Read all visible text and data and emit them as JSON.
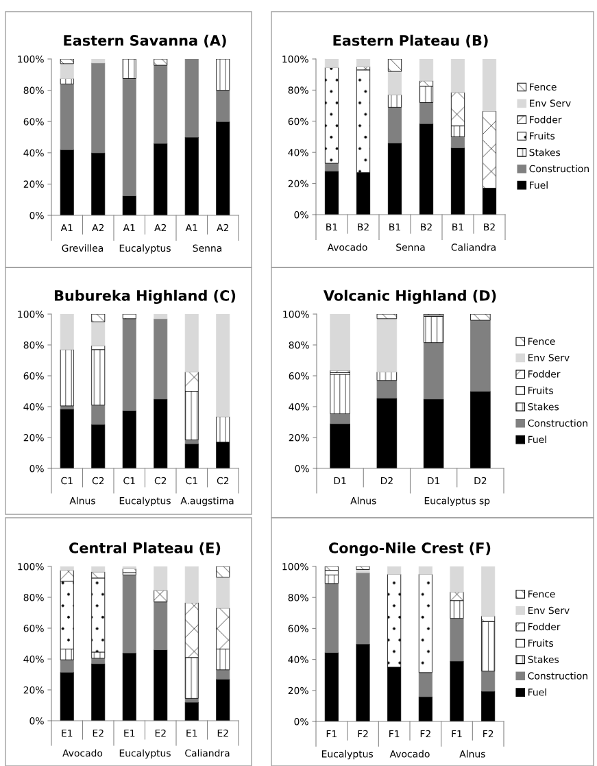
{
  "chart_data": [
    {
      "type": "bar",
      "stacked": true,
      "title": "Eastern Savanna (A)",
      "categories": [
        "A1",
        "A2",
        "A1",
        "A2",
        "A1",
        "A2"
      ],
      "annotations": [
        "Grevillea",
        "Eucalyptus",
        "Senna"
      ],
      "ylim": [
        0,
        100
      ],
      "yticks": [
        {
          "value": 0,
          "label": "0%"
        },
        {
          "value": 20,
          "label": "20%"
        },
        {
          "value": 40,
          "label": "40%"
        },
        {
          "value": 60,
          "label": "60%"
        },
        {
          "value": 80,
          "label": "80%"
        },
        {
          "value": 100,
          "label": "100%"
        }
      ],
      "legend": false,
      "grid": false,
      "series": [
        {
          "color": "#000000",
          "values": [
            42,
            40,
            12.5,
            46,
            50,
            60
          ]
        },
        {
          "color": "#808080",
          "values": [
            42,
            57.5,
            75,
            50,
            50,
            20
          ]
        },
        {
          "color": "#000000",
          "values": [
            3.5,
            0,
            12.5,
            0,
            0,
            20
          ]
        },
        {
          "color": "#d9d9d9",
          "values": [
            9.5,
            2.5,
            0,
            0,
            0,
            0
          ]
        },
        {
          "color": "#000000",
          "values": [
            3,
            0,
            0,
            4,
            0,
            0
          ]
        }
      ]
    },
    {
      "type": "bar",
      "stacked": true,
      "title": "Eastern Plateau (B)",
      "categories": [
        "B1",
        "B2",
        "B1",
        "B2",
        "B1",
        "B2"
      ],
      "annotations": [
        "Avocado",
        "Senna",
        "Caliandra"
      ],
      "ylim": [
        0,
        100
      ],
      "yticks": [
        {
          "value": 0,
          "label": "0%"
        },
        {
          "value": 20,
          "label": "20%"
        },
        {
          "value": 40,
          "label": "40%"
        },
        {
          "value": 60,
          "label": "60%"
        },
        {
          "value": 80,
          "label": "80%"
        },
        {
          "value": 100,
          "label": "100%"
        }
      ],
      "legend": "right",
      "grid": false,
      "series": [
        {
          "name": "Fuel",
          "color": "#000000",
          "values": [
            28,
            27,
            46,
            58.5,
            43,
            17
          ]
        },
        {
          "name": "Construction",
          "color": "#808080",
          "values": [
            5,
            0,
            23,
            13.5,
            7,
            0
          ]
        },
        {
          "name": "Stakes",
          "color": "#000000",
          "values": [
            0,
            0,
            8,
            10.5,
            7,
            0
          ]
        },
        {
          "name": "Fruits",
          "color": "#000000",
          "values": [
            61.5,
            66,
            0,
            0,
            0,
            0
          ]
        },
        {
          "name": "Fodder",
          "color": "#000000",
          "values": [
            0,
            2,
            0,
            3.5,
            21.5,
            49.5
          ]
        },
        {
          "name": "Env Serv",
          "color": "#d9d9d9",
          "values": [
            5.5,
            5,
            15,
            14,
            21.5,
            33.5
          ]
        },
        {
          "name": "Fence",
          "color": "#000000",
          "values": [
            0,
            0,
            8,
            0,
            0,
            0
          ]
        }
      ]
    },
    {
      "type": "bar",
      "stacked": true,
      "title": "Bubureka Highland (C)",
      "categories": [
        "C1",
        "C2",
        "C1",
        "C2",
        "C1",
        "C2"
      ],
      "annotations": [
        "Alnus",
        "Eucalyptus",
        "A.augstima"
      ],
      "ylim": [
        0,
        100
      ],
      "yticks": [
        {
          "value": 0,
          "label": "0%"
        },
        {
          "value": 20,
          "label": "20%"
        },
        {
          "value": 40,
          "label": "40%"
        },
        {
          "value": 60,
          "label": "60%"
        },
        {
          "value": 80,
          "label": "80%"
        },
        {
          "value": 100,
          "label": "100%"
        }
      ],
      "legend": false,
      "grid": false,
      "series": [
        {
          "color": "#000000",
          "values": [
            38.5,
            28.5,
            37.5,
            45,
            16,
            17
          ]
        },
        {
          "color": "#808080",
          "values": [
            2,
            12.5,
            59.5,
            52,
            2.5,
            0
          ]
        },
        {
          "color": "#000000",
          "values": [
            36.5,
            36,
            0,
            0,
            31.5,
            16.5
          ]
        },
        {
          "color": "#000000",
          "values": [
            0,
            2.5,
            3,
            0,
            0,
            0
          ]
        },
        {
          "color": "#000000",
          "values": [
            0,
            0,
            0,
            0,
            12.5,
            0
          ]
        },
        {
          "color": "#d9d9d9",
          "values": [
            23,
            15.5,
            0,
            3,
            37.5,
            66.5
          ]
        },
        {
          "color": "#000000",
          "values": [
            0,
            5,
            0,
            0,
            0,
            0
          ]
        }
      ]
    },
    {
      "type": "bar",
      "stacked": true,
      "title": "Volcanic Highland (D)",
      "categories": [
        "D1",
        "D2",
        "D1",
        "D2"
      ],
      "annotations": [
        "Alnus",
        "Eucalyptus sp"
      ],
      "ylim": [
        0,
        100
      ],
      "yticks": [
        {
          "value": 0,
          "label": "0%"
        },
        {
          "value": 20,
          "label": "20%"
        },
        {
          "value": 40,
          "label": "40%"
        },
        {
          "value": 60,
          "label": "60%"
        },
        {
          "value": 80,
          "label": "80%"
        },
        {
          "value": 100,
          "label": "100%"
        }
      ],
      "legend": "right",
      "grid": false,
      "series": [
        {
          "name": "Fuel",
          "color": "#000000",
          "values": [
            29,
            45.5,
            45,
            50
          ]
        },
        {
          "name": "Construction",
          "color": "#808080",
          "values": [
            6.5,
            11.5,
            36.5,
            46
          ]
        },
        {
          "name": "Stakes",
          "color": "#000000",
          "values": [
            25.5,
            5.5,
            17,
            0
          ]
        },
        {
          "name": "Fruits",
          "color": "#000000",
          "values": [
            1,
            0,
            1,
            0
          ]
        },
        {
          "name": "Fodder",
          "color": "#000000",
          "values": [
            1.5,
            0,
            0.5,
            0
          ]
        },
        {
          "name": "Env Serv",
          "color": "#d9d9d9",
          "values": [
            36.5,
            34.5,
            0,
            0
          ]
        },
        {
          "name": "Fence",
          "color": "#000000",
          "values": [
            0,
            3,
            0,
            4
          ]
        }
      ]
    },
    {
      "type": "bar",
      "stacked": true,
      "title": "Central Plateau (E)",
      "categories": [
        "E1",
        "E2",
        "E1",
        "E2",
        "E1",
        "E2"
      ],
      "annotations": [
        "Avocado",
        "Eucalyptus",
        "Caliandra"
      ],
      "ylim": [
        0,
        100
      ],
      "yticks": [
        {
          "value": 0,
          "label": "0%"
        },
        {
          "value": 20,
          "label": "20%"
        },
        {
          "value": 40,
          "label": "40%"
        },
        {
          "value": 60,
          "label": "60%"
        },
        {
          "value": 80,
          "label": "80%"
        },
        {
          "value": 100,
          "label": "100%"
        }
      ],
      "legend": false,
      "grid": false,
      "series": [
        {
          "color": "#000000",
          "values": [
            31.5,
            37,
            44,
            46,
            12,
            27
          ]
        },
        {
          "color": "#808080",
          "values": [
            8,
            3.5,
            50.5,
            31,
            2.5,
            6
          ]
        },
        {
          "color": "#000000",
          "values": [
            7,
            4,
            0,
            0,
            26.5,
            13.5
          ]
        },
        {
          "color": "#000000",
          "values": [
            44,
            48,
            1.5,
            0,
            0,
            0
          ]
        },
        {
          "color": "#000000",
          "values": [
            7,
            4,
            2.5,
            7.5,
            35.5,
            26.5
          ]
        },
        {
          "color": "#d9d9d9",
          "values": [
            2.5,
            3.5,
            1.5,
            15.5,
            23.5,
            20
          ]
        },
        {
          "color": "#000000",
          "values": [
            0,
            0,
            0,
            0,
            0,
            7
          ]
        }
      ]
    },
    {
      "type": "bar",
      "stacked": true,
      "title": "Congo-Nile Crest (F)",
      "categories": [
        "F1",
        "F2",
        "F1",
        "F2",
        "F1",
        "F2"
      ],
      "annotations": [
        "Eucalyptus",
        "Avocado",
        "Alnus"
      ],
      "ylim": [
        0,
        100
      ],
      "yticks": [
        {
          "value": 0,
          "label": "0%"
        },
        {
          "value": 20,
          "label": "20%"
        },
        {
          "value": 40,
          "label": "40%"
        },
        {
          "value": 60,
          "label": "60%"
        },
        {
          "value": 80,
          "label": "80%"
        },
        {
          "value": 100,
          "label": "100%"
        }
      ],
      "legend": "right",
      "grid": false,
      "series": [
        {
          "name": "Fuel",
          "color": "#000000",
          "values": [
            44.5,
            50,
            35,
            16,
            39,
            19.5
          ]
        },
        {
          "name": "Construction",
          "color": "#808080",
          "values": [
            44.5,
            46,
            0,
            15.5,
            27.5,
            13
          ]
        },
        {
          "name": "Stakes",
          "color": "#000000",
          "values": [
            5.5,
            0,
            0,
            0,
            11.5,
            32
          ]
        },
        {
          "name": "Fruits",
          "color": "#000000",
          "values": [
            0,
            0,
            60,
            63.5,
            0,
            0
          ]
        },
        {
          "name": "Fodder",
          "color": "#000000",
          "values": [
            3,
            0,
            0,
            0,
            5.5,
            3.5
          ]
        },
        {
          "name": "Env Serv",
          "color": "#d9d9d9",
          "values": [
            0,
            2,
            5,
            5,
            16.5,
            32
          ]
        },
        {
          "name": "Fence",
          "color": "#000000",
          "values": [
            2.5,
            2,
            0,
            0,
            0,
            0
          ]
        }
      ]
    }
  ]
}
